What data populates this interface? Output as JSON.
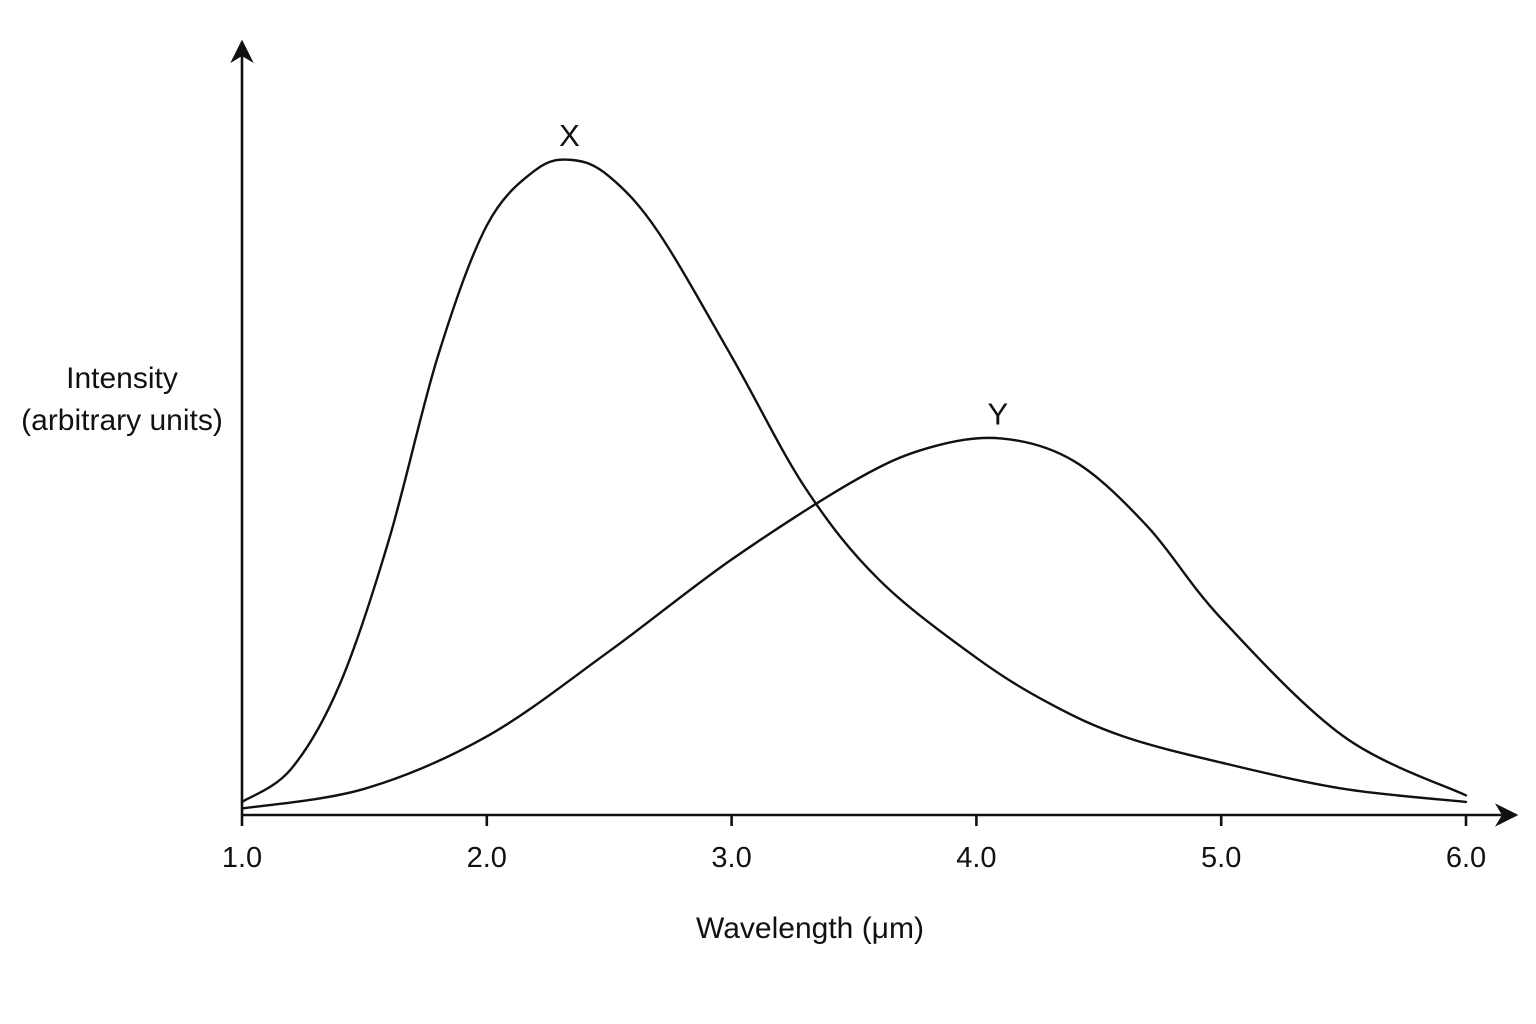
{
  "chart_data": {
    "type": "line",
    "title": "",
    "xlabel": "Wavelength (μm)",
    "ylabel_lines": [
      "Intensity",
      "(arbitrary units)"
    ],
    "xlim": [
      1.0,
      6.05
    ],
    "ylim": [
      0,
      1.0
    ],
    "x_ticks": [
      "1.0",
      "2.0",
      "3.0",
      "4.0",
      "5.0",
      "6.0"
    ],
    "x_tick_values": [
      1.0,
      2.0,
      3.0,
      4.0,
      5.0,
      6.0
    ],
    "grid": false,
    "legend": "none",
    "line_color": "#111111",
    "series": [
      {
        "name": "X",
        "x": [
          1.0,
          1.2,
          1.4,
          1.6,
          1.8,
          2.0,
          2.2,
          2.35,
          2.5,
          2.7,
          3.0,
          3.3,
          3.6,
          4.0,
          4.3,
          4.6,
          5.0,
          5.5,
          6.0
        ],
        "y": [
          0.02,
          0.07,
          0.2,
          0.42,
          0.7,
          0.9,
          0.985,
          1.0,
          0.975,
          0.89,
          0.7,
          0.5,
          0.36,
          0.24,
          0.17,
          0.12,
          0.08,
          0.04,
          0.02
        ]
      },
      {
        "name": "Y",
        "x": [
          1.0,
          1.5,
          2.0,
          2.5,
          3.0,
          3.5,
          3.8,
          4.1,
          4.4,
          4.7,
          5.0,
          5.5,
          6.0
        ],
        "y": [
          0.01,
          0.04,
          0.12,
          0.25,
          0.39,
          0.51,
          0.56,
          0.575,
          0.54,
          0.44,
          0.3,
          0.12,
          0.03
        ]
      }
    ]
  }
}
